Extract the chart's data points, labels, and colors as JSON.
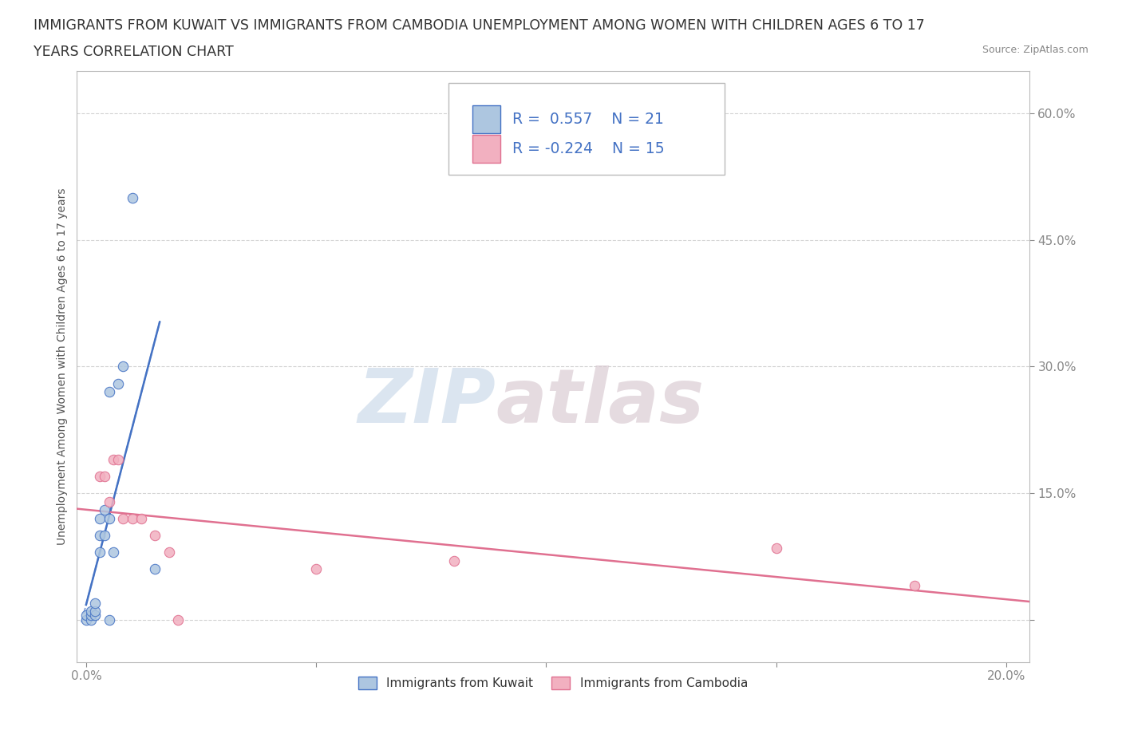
{
  "title_line1": "IMMIGRANTS FROM KUWAIT VS IMMIGRANTS FROM CAMBODIA UNEMPLOYMENT AMONG WOMEN WITH CHILDREN AGES 6 TO 17",
  "title_line2": "YEARS CORRELATION CHART",
  "source": "Source: ZipAtlas.com",
  "xlim": [
    -0.002,
    0.205
  ],
  "ylim": [
    -0.05,
    0.65
  ],
  "kuwait_x": [
    0.0,
    0.0,
    0.001,
    0.001,
    0.001,
    0.002,
    0.002,
    0.002,
    0.003,
    0.003,
    0.003,
    0.004,
    0.004,
    0.005,
    0.005,
    0.005,
    0.006,
    0.007,
    0.008,
    0.01,
    0.015
  ],
  "kuwait_y": [
    0.0,
    0.005,
    0.0,
    0.005,
    0.01,
    0.005,
    0.01,
    0.02,
    0.08,
    0.1,
    0.12,
    0.1,
    0.13,
    0.12,
    0.27,
    0.0,
    0.08,
    0.28,
    0.3,
    0.5,
    0.06
  ],
  "cambodia_x": [
    0.003,
    0.004,
    0.005,
    0.006,
    0.007,
    0.008,
    0.01,
    0.012,
    0.015,
    0.018,
    0.02,
    0.05,
    0.08,
    0.15,
    0.18
  ],
  "cambodia_y": [
    0.17,
    0.17,
    0.14,
    0.19,
    0.19,
    0.12,
    0.12,
    0.12,
    0.1,
    0.08,
    0.0,
    0.06,
    0.07,
    0.085,
    0.04
  ],
  "kuwait_color": "#adc6e0",
  "cambodia_color": "#f2b0c0",
  "kuwait_line_color": "#4472c4",
  "cambodia_line_color": "#e07090",
  "kuwait_R": 0.557,
  "kuwait_N": 21,
  "cambodia_R": -0.224,
  "cambodia_N": 15,
  "watermark_zip": "ZIP",
  "watermark_atlas": "atlas",
  "legend_label_kuwait": "Immigrants from Kuwait",
  "legend_label_cambodia": "Immigrants from Cambodia",
  "ylabel": "Unemployment Among Women with Children Ages 6 to 17 years",
  "title_fontsize": 12.5,
  "axis_label_color": "#4472c4",
  "background_color": "#ffffff",
  "grid_color": "#c8c8c8",
  "marker_size": 80
}
